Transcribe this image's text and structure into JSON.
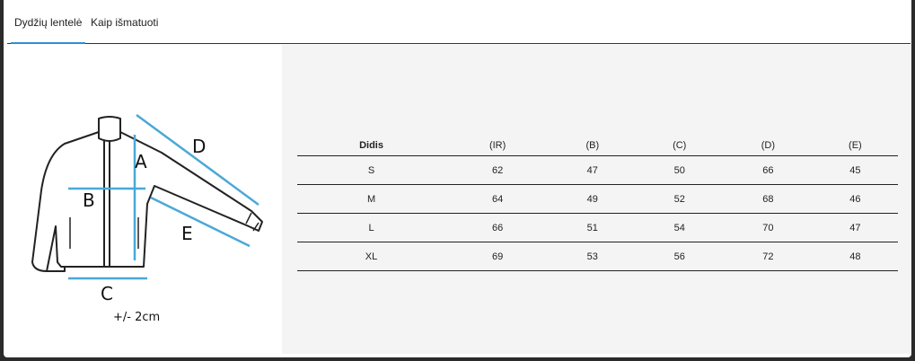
{
  "tabs": [
    {
      "label": "Dydžių lentelė",
      "active": true
    },
    {
      "label": "Kaip išmatuoti",
      "active": false
    }
  ],
  "diagram": {
    "labels": {
      "A": "A",
      "B": "B",
      "C": "C",
      "D": "D",
      "E": "E"
    },
    "tolerance": "+/- 2cm",
    "arrow_color": "#4aa8d8"
  },
  "table": {
    "headers": [
      "Didis",
      "(IR)",
      "(B)",
      "(C)",
      "(D)",
      "(E)"
    ],
    "rows": [
      [
        "S",
        "62",
        "47",
        "50",
        "66",
        "45"
      ],
      [
        "M",
        "64",
        "49",
        "52",
        "68",
        "46"
      ],
      [
        "L",
        "66",
        "51",
        "54",
        "70",
        "47"
      ],
      [
        "XL",
        "69",
        "53",
        "56",
        "72",
        "48"
      ]
    ]
  }
}
